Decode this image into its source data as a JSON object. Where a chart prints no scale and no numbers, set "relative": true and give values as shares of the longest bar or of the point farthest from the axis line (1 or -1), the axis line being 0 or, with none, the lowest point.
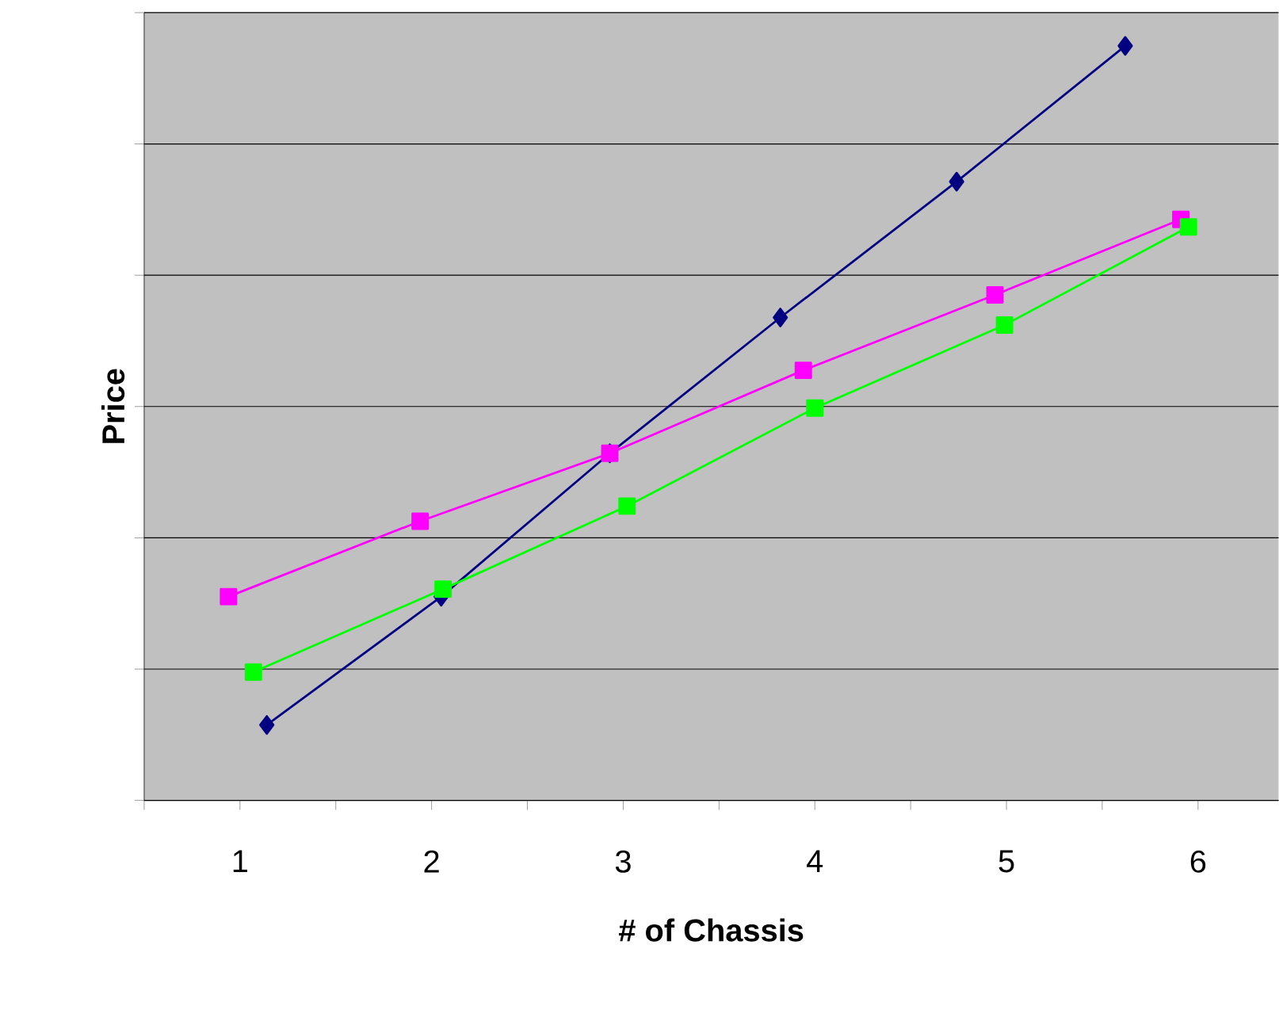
{
  "chart_data": {
    "type": "line",
    "relative": true,
    "xlabel": "# of Chassis",
    "ylabel": "Price",
    "xlim": [
      0.5,
      6.42
    ],
    "xticks": [
      {
        "value": 0.5,
        "label": null
      },
      1,
      {
        "value": 1.5,
        "label": null
      },
      2,
      {
        "value": 2.5,
        "label": null
      },
      3,
      {
        "value": 3.5,
        "label": null
      },
      4,
      {
        "value": 4.5,
        "label": null
      },
      5,
      {
        "value": 5.5,
        "label": null
      },
      6
    ],
    "grid": "y",
    "line_style": "solid",
    "series": [
      {
        "color": "#000080",
        "marker": "diamond",
        "x": [
          1.14,
          2.05,
          2.93,
          3.82,
          4.74,
          5.62
        ],
        "values": [
          0.1,
          0.27,
          0.46,
          0.64,
          0.82,
          1.0
        ]
      },
      {
        "color": "#ff00ff",
        "marker": "square",
        "x": [
          0.94,
          1.94,
          2.93,
          3.94,
          4.94,
          5.91
        ],
        "values": [
          0.27,
          0.37,
          0.46,
          0.57,
          0.67,
          0.77
        ]
      },
      {
        "color": "#00ff00",
        "marker": "square",
        "x": [
          1.07,
          2.06,
          3.02,
          4.0,
          4.99,
          5.95
        ],
        "values": [
          0.17,
          0.28,
          0.39,
          0.52,
          0.63,
          0.76
        ]
      }
    ]
  }
}
